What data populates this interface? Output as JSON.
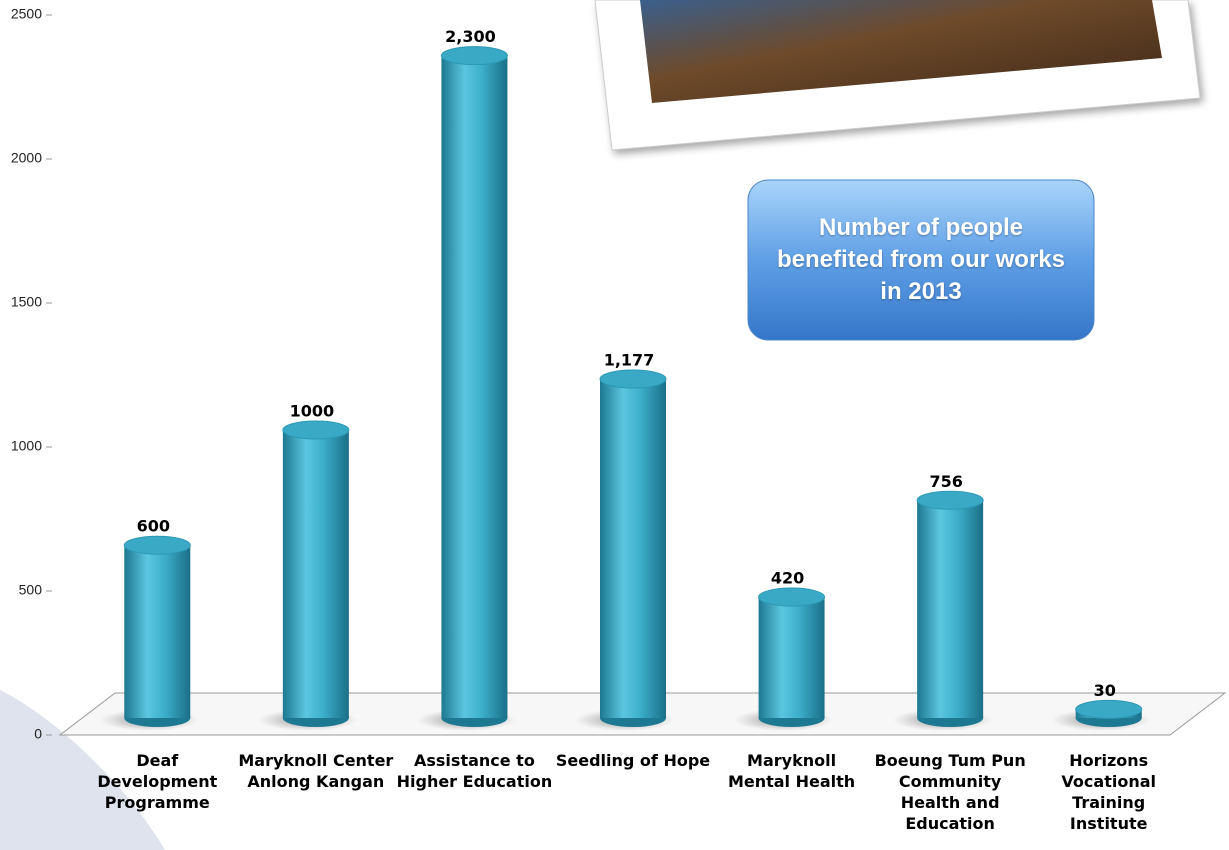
{
  "chart_data": {
    "type": "bar",
    "title": "Number of people benefited from our works in 2013",
    "categories": [
      "Deaf Development Programme",
      "Maryknoll Center Anlong Kangan",
      "Assistance to Higher Education",
      "Seedling of Hope",
      "Maryknoll Mental Health",
      "Boeung Tum Pun Community Health and Education",
      "Horizons Vocational Training Institute"
    ],
    "values": [
      600,
      1000,
      2300,
      1177,
      420,
      756,
      30
    ],
    "value_labels": [
      "600",
      "1000",
      "2,300",
      "1,177",
      "420",
      "756",
      "30"
    ],
    "color": "#3aa9c6",
    "ylim": [
      0,
      2500
    ],
    "yticks": [
      0,
      500,
      1000,
      1500,
      2000,
      2500
    ]
  }
}
